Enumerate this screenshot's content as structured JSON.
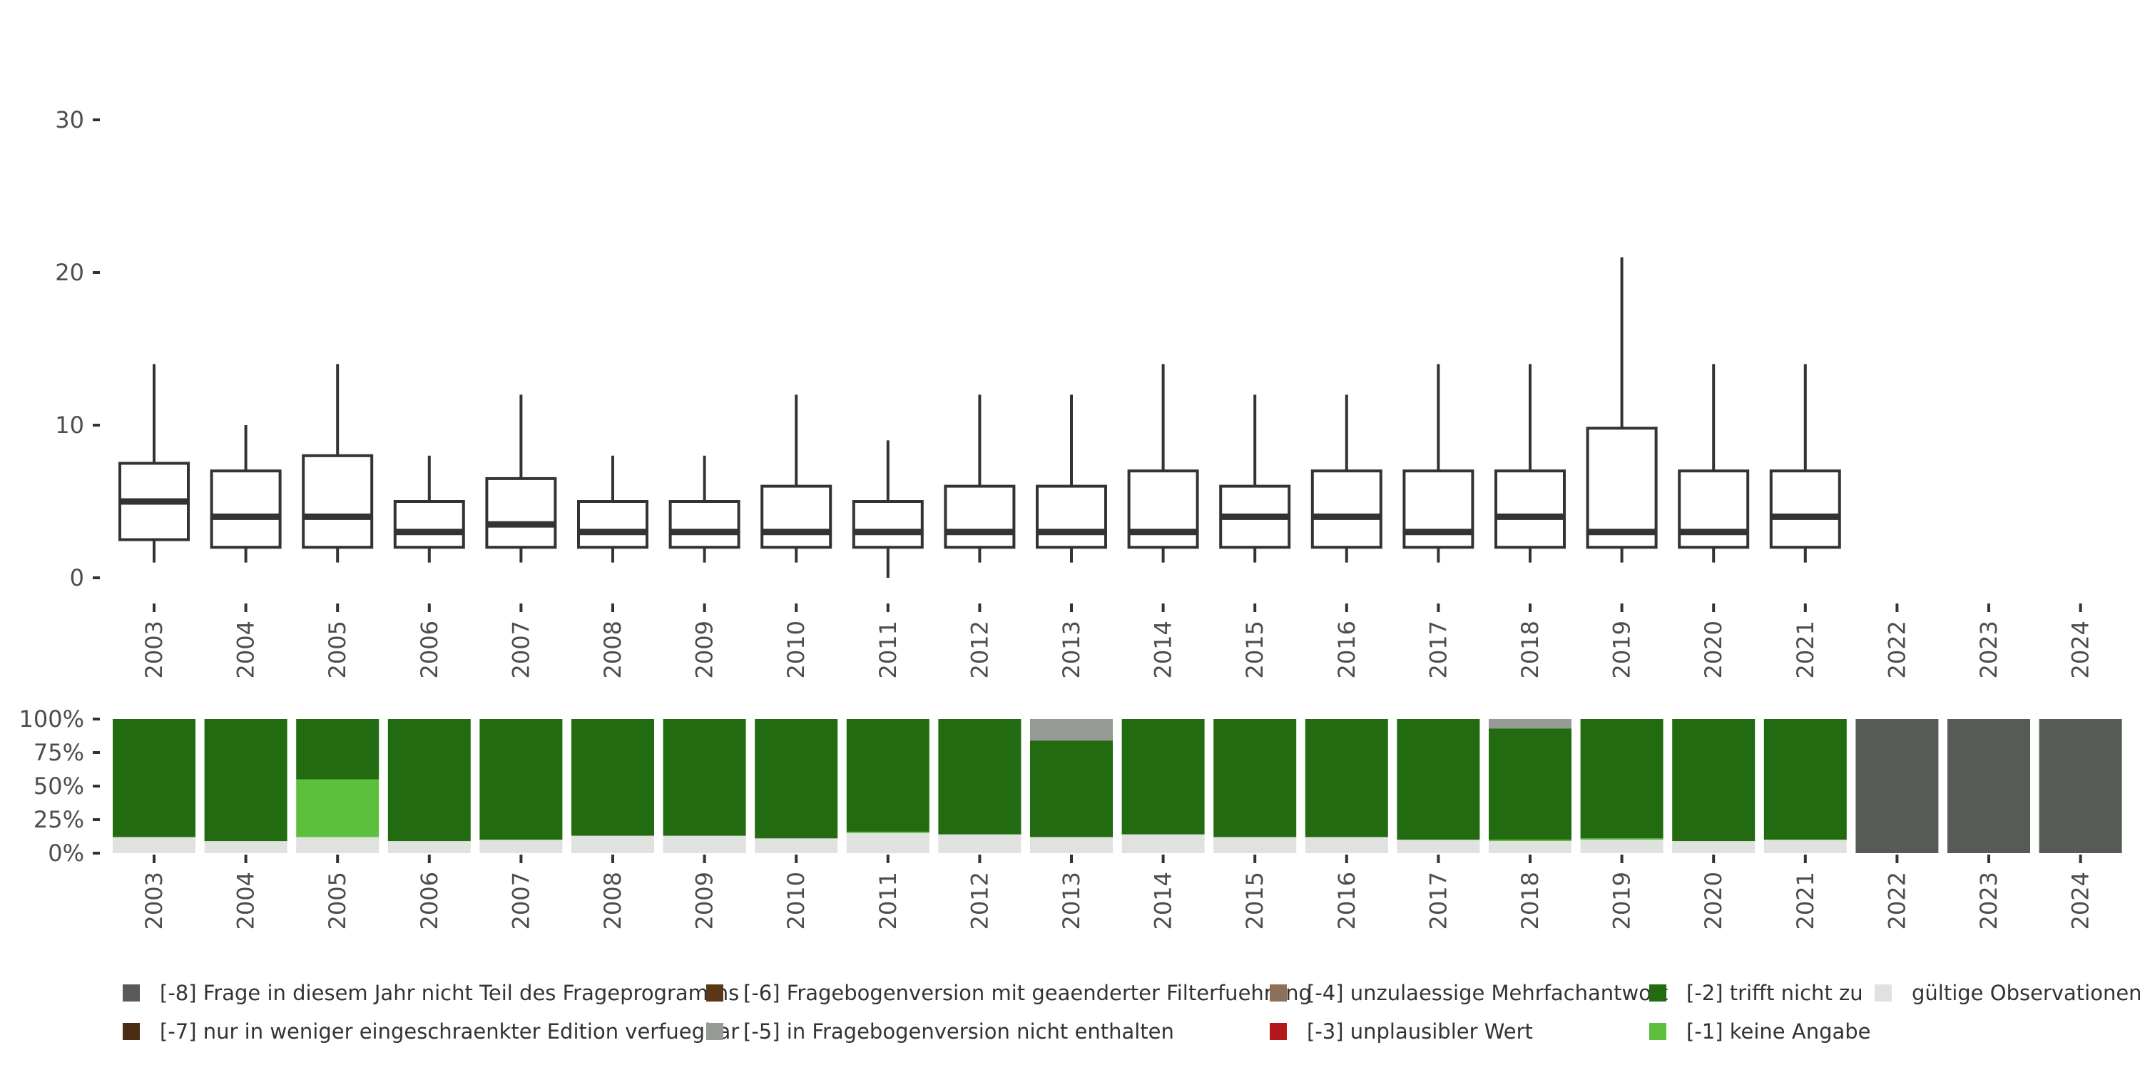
{
  "chart_data": [
    {
      "type": "boxplot",
      "ylim": [
        0,
        31
      ],
      "yticks": [
        0,
        10,
        20,
        30
      ],
      "categories": [
        "2003",
        "2004",
        "2005",
        "2006",
        "2007",
        "2008",
        "2009",
        "2010",
        "2011",
        "2012",
        "2013",
        "2014",
        "2015",
        "2016",
        "2017",
        "2018",
        "2019",
        "2020",
        "2021",
        "2022",
        "2023",
        "2024"
      ],
      "boxes": [
        {
          "year": "2003",
          "whisker_low": 1,
          "q1": 2.5,
          "median": 5,
          "q3": 7.5,
          "whisker_high": 14
        },
        {
          "year": "2004",
          "whisker_low": 1,
          "q1": 2,
          "median": 4,
          "q3": 7,
          "whisker_high": 10
        },
        {
          "year": "2005",
          "whisker_low": 1,
          "q1": 2,
          "median": 4,
          "q3": 8,
          "whisker_high": 14
        },
        {
          "year": "2006",
          "whisker_low": 1,
          "q1": 2,
          "median": 3,
          "q3": 5,
          "whisker_high": 8
        },
        {
          "year": "2007",
          "whisker_low": 1,
          "q1": 2,
          "median": 3.5,
          "q3": 6.5,
          "whisker_high": 12
        },
        {
          "year": "2008",
          "whisker_low": 1,
          "q1": 2,
          "median": 3,
          "q3": 5,
          "whisker_high": 8
        },
        {
          "year": "2009",
          "whisker_low": 1,
          "q1": 2,
          "median": 3,
          "q3": 5,
          "whisker_high": 8
        },
        {
          "year": "2010",
          "whisker_low": 1,
          "q1": 2,
          "median": 3,
          "q3": 6,
          "whisker_high": 12
        },
        {
          "year": "2011",
          "whisker_low": 0,
          "q1": 2,
          "median": 3,
          "q3": 5,
          "whisker_high": 9
        },
        {
          "year": "2012",
          "whisker_low": 1,
          "q1": 2,
          "median": 3,
          "q3": 6,
          "whisker_high": 12
        },
        {
          "year": "2013",
          "whisker_low": 1,
          "q1": 2,
          "median": 3,
          "q3": 6,
          "whisker_high": 12
        },
        {
          "year": "2014",
          "whisker_low": 1,
          "q1": 2,
          "median": 3,
          "q3": 7,
          "whisker_high": 14
        },
        {
          "year": "2015",
          "whisker_low": 1,
          "q1": 2,
          "median": 4,
          "q3": 6,
          "whisker_high": 12
        },
        {
          "year": "2016",
          "whisker_low": 1,
          "q1": 2,
          "median": 4,
          "q3": 7,
          "whisker_high": 12
        },
        {
          "year": "2017",
          "whisker_low": 1,
          "q1": 2,
          "median": 3,
          "q3": 7,
          "whisker_high": 14
        },
        {
          "year": "2018",
          "whisker_low": 1,
          "q1": 2,
          "median": 4,
          "q3": 7,
          "whisker_high": 14
        },
        {
          "year": "2019",
          "whisker_low": 1,
          "q1": 2,
          "median": 3,
          "q3": 9.8,
          "whisker_high": 21
        },
        {
          "year": "2020",
          "whisker_low": 1,
          "q1": 2,
          "median": 3,
          "q3": 7,
          "whisker_high": 14
        },
        {
          "year": "2021",
          "whisker_low": 1,
          "q1": 2,
          "median": 4,
          "q3": 7,
          "whisker_high": 14
        }
      ]
    },
    {
      "type": "stacked_bar",
      "ylim": [
        0,
        1
      ],
      "yticks": [
        "0%",
        "25%",
        "50%",
        "75%",
        "100%"
      ],
      "categories": [
        "2003",
        "2004",
        "2005",
        "2006",
        "2007",
        "2008",
        "2009",
        "2010",
        "2011",
        "2012",
        "2013",
        "2014",
        "2015",
        "2016",
        "2017",
        "2018",
        "2019",
        "2020",
        "2021",
        "2022",
        "2023",
        "2024"
      ],
      "series": [
        {
          "key": "valid",
          "color": "#e0e2e0",
          "values": [
            0.12,
            0.09,
            0.12,
            0.09,
            0.1,
            0.13,
            0.13,
            0.11,
            0.15,
            0.14,
            0.12,
            0.14,
            0.12,
            0.12,
            0.1,
            0.09,
            0.1,
            0.09,
            0.1,
            0,
            0,
            0
          ]
        },
        {
          "key": "m1",
          "color": "#5cbf3e",
          "values": [
            0,
            0,
            0.43,
            0,
            0,
            0,
            0,
            0,
            0.01,
            0,
            0,
            0,
            0,
            0,
            0,
            0.01,
            0.01,
            0,
            0,
            0,
            0,
            0
          ]
        },
        {
          "key": "m2",
          "color": "#226b10",
          "values": [
            0.88,
            0.91,
            0.45,
            0.91,
            0.9,
            0.87,
            0.87,
            0.89,
            0.84,
            0.86,
            0.72,
            0.86,
            0.88,
            0.88,
            0.9,
            0.83,
            0.89,
            0.91,
            0.9,
            0,
            0,
            0
          ]
        },
        {
          "key": "m5",
          "color": "#979b95",
          "values": [
            0,
            0,
            0,
            0,
            0,
            0,
            0,
            0,
            0,
            0,
            0.16,
            0,
            0,
            0,
            0,
            0.07,
            0,
            0,
            0,
            0,
            0,
            0
          ]
        },
        {
          "key": "m8",
          "color": "#565b55",
          "values": [
            0,
            0,
            0,
            0,
            0,
            0,
            0,
            0,
            0,
            0,
            0,
            0,
            0,
            0,
            0,
            0,
            0,
            0,
            0,
            1,
            1,
            1
          ]
        }
      ]
    }
  ],
  "legend": [
    {
      "label": "[-8] Frage in diesem Jahr nicht Teil des Frageprogramms",
      "color": "#565b55"
    },
    {
      "label": "[-7] nur in weniger eingeschraenkter Edition verfuegbar",
      "color": "#4a2d14"
    },
    {
      "label": "[-6] Fragebogenversion mit geaenderter Filterfuehrung",
      "color": "#5a3716"
    },
    {
      "label": "[-5] in Fragebogenversion nicht enthalten",
      "color": "#979b95"
    },
    {
      "label": "[-4] unzulaessige Mehrfachantwort",
      "color": "#8e6f58"
    },
    {
      "label": "[-3] unplausibler Wert",
      "color": "#b3191b"
    },
    {
      "label": "[-2] trifft nicht zu",
      "color": "#226b10"
    },
    {
      "label": "[-1] keine Angabe",
      "color": "#5cbf3e"
    },
    {
      "label": "gültige Observationen",
      "color": "#e0e2e0"
    }
  ]
}
